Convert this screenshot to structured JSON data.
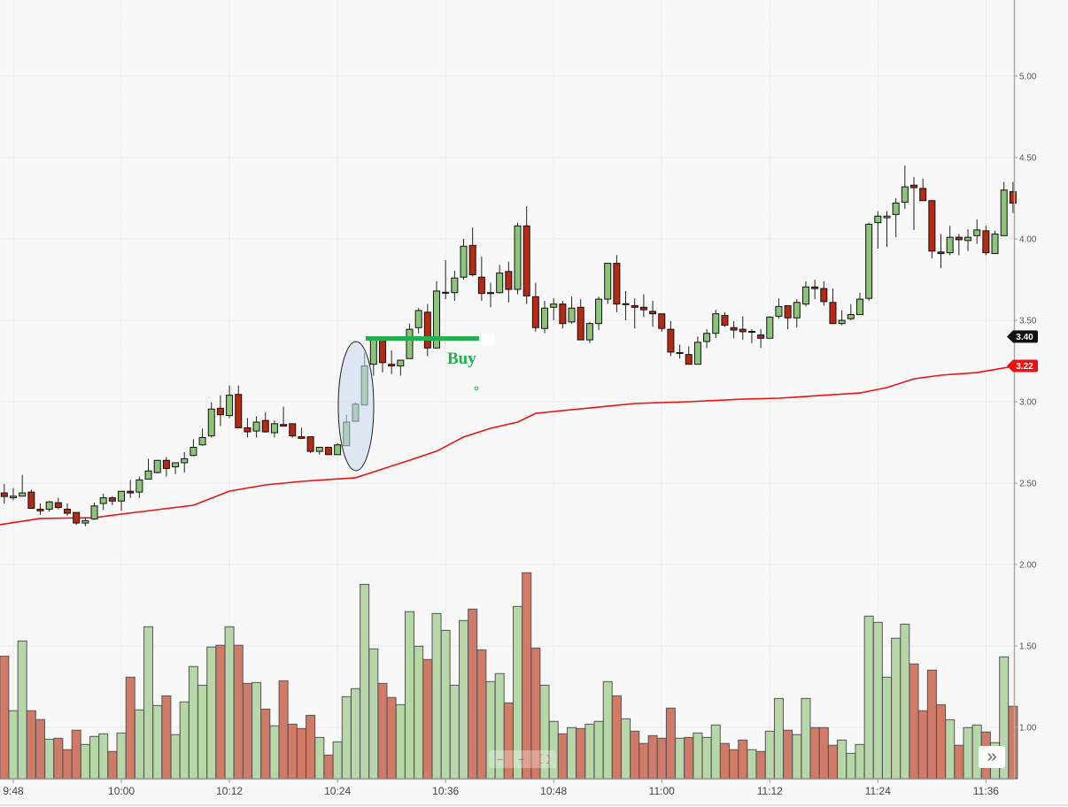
{
  "chart_data": {
    "type": "candlestick",
    "title": "",
    "x_ticks": [
      "9:48",
      "10:00",
      "10:12",
      "10:24",
      "10:36",
      "10:48",
      "11:00",
      "11:12",
      "11:24",
      "11:36"
    ],
    "y_ticks": [
      "5.00",
      "4.50",
      "4.00",
      "3.50",
      "3.00",
      "2.50",
      "2.00",
      "1.50",
      "1.00"
    ],
    "ylim": [
      0.7,
      5.47
    ],
    "grid": true,
    "candle_fields": [
      "time",
      "open",
      "high",
      "low",
      "close"
    ],
    "candles": [
      [
        "9:47",
        2.44,
        2.495,
        2.375,
        2.418
      ],
      [
        "9:48",
        2.41,
        2.47,
        2.395,
        2.42
      ],
      [
        "9:49",
        2.42,
        2.55,
        2.42,
        2.44
      ],
      [
        "9:50",
        2.445,
        2.46,
        2.345,
        2.345
      ],
      [
        "9:51",
        2.34,
        2.375,
        2.305,
        2.33
      ],
      [
        "9:52",
        2.34,
        2.39,
        2.325,
        2.385
      ],
      [
        "9:53",
        2.38,
        2.41,
        2.34,
        2.35
      ],
      [
        "9:54",
        2.34,
        2.375,
        2.3,
        2.315
      ],
      [
        "9:55",
        2.32,
        2.32,
        2.245,
        2.255
      ],
      [
        "9:56",
        2.255,
        2.29,
        2.235,
        2.27
      ],
      [
        "9:57",
        2.28,
        2.38,
        2.275,
        2.36
      ],
      [
        "9:58",
        2.375,
        2.435,
        2.335,
        2.41
      ],
      [
        "9:59",
        2.41,
        2.42,
        2.365,
        2.39
      ],
      [
        "10:00",
        2.39,
        2.45,
        2.33,
        2.45
      ],
      [
        "10:01",
        2.45,
        2.52,
        2.41,
        2.44
      ],
      [
        "10:02",
        2.445,
        2.54,
        2.41,
        2.52
      ],
      [
        "10:03",
        2.525,
        2.65,
        2.525,
        2.575
      ],
      [
        "10:04",
        2.565,
        2.64,
        2.56,
        2.64
      ],
      [
        "10:05",
        2.64,
        2.66,
        2.54,
        2.59
      ],
      [
        "10:06",
        2.6,
        2.625,
        2.555,
        2.625
      ],
      [
        "10:07",
        2.625,
        2.69,
        2.565,
        2.65
      ],
      [
        "10:08",
        2.67,
        2.77,
        2.665,
        2.72
      ],
      [
        "10:09",
        2.735,
        2.835,
        2.73,
        2.78
      ],
      [
        "10:10",
        2.79,
        2.995,
        2.78,
        2.955
      ],
      [
        "10:11",
        2.96,
        3.04,
        2.85,
        2.92
      ],
      [
        "10:12",
        2.915,
        3.1,
        2.9,
        3.04
      ],
      [
        "10:13",
        3.045,
        3.1,
        2.84,
        2.84
      ],
      [
        "10:14",
        2.84,
        2.9,
        2.78,
        2.815
      ],
      [
        "10:15",
        2.82,
        2.91,
        2.78,
        2.875
      ],
      [
        "10:16",
        2.885,
        2.935,
        2.81,
        2.815
      ],
      [
        "10:17",
        2.81,
        2.885,
        2.78,
        2.865
      ],
      [
        "10:18",
        2.86,
        2.97,
        2.85,
        2.85
      ],
      [
        "10:19",
        2.865,
        2.865,
        2.78,
        2.79
      ],
      [
        "10:20",
        2.785,
        2.84,
        2.77,
        2.775
      ],
      [
        "10:21",
        2.785,
        2.785,
        2.685,
        2.695
      ],
      [
        "10:22",
        2.695,
        2.72,
        2.675,
        2.72
      ],
      [
        "10:23",
        2.72,
        2.72,
        2.675,
        2.675
      ],
      [
        "10:24",
        2.675,
        2.745,
        2.675,
        2.735
      ],
      [
        "10:25",
        2.73,
        2.92,
        2.73,
        2.875
      ],
      [
        "10:26",
        2.88,
        2.995,
        2.88,
        2.985
      ],
      [
        "10:27",
        2.98,
        3.3,
        2.98,
        3.22
      ],
      [
        "10:28",
        3.23,
        3.385,
        3.16,
        3.385
      ],
      [
        "10:29",
        3.385,
        3.39,
        3.18,
        3.24
      ],
      [
        "10:30",
        3.23,
        3.315,
        3.17,
        3.22
      ],
      [
        "10:31",
        3.22,
        3.255,
        3.16,
        3.255
      ],
      [
        "10:32",
        3.265,
        3.48,
        3.265,
        3.445
      ],
      [
        "10:33",
        3.455,
        3.575,
        3.42,
        3.56
      ],
      [
        "10:34",
        3.55,
        3.6,
        3.28,
        3.33
      ],
      [
        "10:35",
        3.33,
        3.74,
        3.33,
        3.68
      ],
      [
        "10:36",
        3.67,
        3.87,
        3.63,
        3.672
      ],
      [
        "10:37",
        3.67,
        3.805,
        3.62,
        3.76
      ],
      [
        "10:38",
        3.765,
        4.0,
        3.75,
        3.955
      ],
      [
        "10:39",
        3.96,
        4.07,
        3.77,
        3.78
      ],
      [
        "10:40",
        3.765,
        3.89,
        3.62,
        3.665
      ],
      [
        "10:41",
        3.665,
        3.73,
        3.58,
        3.67
      ],
      [
        "10:42",
        3.67,
        3.84,
        3.665,
        3.79
      ],
      [
        "10:43",
        3.8,
        3.86,
        3.61,
        3.69
      ],
      [
        "10:44",
        3.69,
        4.1,
        3.66,
        4.08
      ],
      [
        "10:45",
        4.08,
        4.2,
        3.6,
        3.65
      ],
      [
        "10:46",
        3.645,
        3.73,
        3.43,
        3.455
      ],
      [
        "10:47",
        3.45,
        3.62,
        3.42,
        3.575
      ],
      [
        "10:48",
        3.58,
        3.635,
        3.5,
        3.6
      ],
      [
        "10:49",
        3.6,
        3.62,
        3.45,
        3.48
      ],
      [
        "10:50",
        3.49,
        3.645,
        3.48,
        3.575
      ],
      [
        "10:51",
        3.58,
        3.63,
        3.38,
        3.38
      ],
      [
        "10:52",
        3.38,
        3.49,
        3.36,
        3.48
      ],
      [
        "10:53",
        3.48,
        3.645,
        3.44,
        3.63
      ],
      [
        "10:54",
        3.63,
        3.85,
        3.6,
        3.85
      ],
      [
        "10:55",
        3.85,
        3.9,
        3.55,
        3.6
      ],
      [
        "10:56",
        3.6,
        3.68,
        3.5,
        3.602
      ],
      [
        "10:57",
        3.59,
        3.635,
        3.45,
        3.58
      ],
      [
        "10:58",
        3.58,
        3.66,
        3.52,
        3.565
      ],
      [
        "10:59",
        3.555,
        3.62,
        3.46,
        3.54
      ],
      [
        "11:00",
        3.54,
        3.54,
        3.43,
        3.45
      ],
      [
        "11:01",
        3.445,
        3.495,
        3.28,
        3.305
      ],
      [
        "11:02",
        3.3,
        3.35,
        3.265,
        3.302
      ],
      [
        "11:03",
        3.29,
        3.34,
        3.23,
        3.23
      ],
      [
        "11:04",
        3.23,
        3.4,
        3.23,
        3.365
      ],
      [
        "11:05",
        3.37,
        3.445,
        3.33,
        3.42
      ],
      [
        "11:06",
        3.42,
        3.565,
        3.39,
        3.54
      ],
      [
        "11:07",
        3.53,
        3.55,
        3.46,
        3.47
      ],
      [
        "11:08",
        3.455,
        3.495,
        3.39,
        3.44
      ],
      [
        "11:09",
        3.445,
        3.525,
        3.38,
        3.43
      ],
      [
        "11:10",
        3.43,
        3.445,
        3.36,
        3.432
      ],
      [
        "11:11",
        3.41,
        3.445,
        3.33,
        3.39
      ],
      [
        "11:12",
        3.39,
        3.525,
        3.39,
        3.52
      ],
      [
        "11:13",
        3.525,
        3.635,
        3.51,
        3.585
      ],
      [
        "11:14",
        3.59,
        3.59,
        3.445,
        3.515
      ],
      [
        "11:15",
        3.515,
        3.63,
        3.455,
        3.61
      ],
      [
        "11:16",
        3.6,
        3.74,
        3.585,
        3.705
      ],
      [
        "11:17",
        3.705,
        3.75,
        3.63,
        3.695
      ],
      [
        "11:18",
        3.695,
        3.74,
        3.59,
        3.615
      ],
      [
        "11:19",
        3.61,
        3.695,
        3.48,
        3.48
      ],
      [
        "11:20",
        3.48,
        3.56,
        3.47,
        3.5
      ],
      [
        "11:21",
        3.51,
        3.6,
        3.5,
        3.535
      ],
      [
        "11:22",
        3.535,
        3.67,
        3.535,
        3.63
      ],
      [
        "11:23",
        3.635,
        4.1,
        3.62,
        4.09
      ],
      [
        "11:24",
        4.1,
        4.17,
        3.94,
        4.14
      ],
      [
        "11:25",
        4.13,
        4.17,
        3.95,
        4.14
      ],
      [
        "11:26",
        4.15,
        4.25,
        4.01,
        4.22
      ],
      [
        "11:27",
        4.225,
        4.45,
        4.185,
        4.32
      ],
      [
        "11:28",
        4.33,
        4.38,
        4.055,
        4.315
      ],
      [
        "11:29",
        4.31,
        4.37,
        4.235,
        4.235
      ],
      [
        "11:30",
        4.235,
        4.24,
        3.88,
        3.925
      ],
      [
        "11:31",
        3.92,
        4.03,
        3.82,
        3.91
      ],
      [
        "11:32",
        3.915,
        4.08,
        3.9,
        4.01
      ],
      [
        "11:33",
        4.01,
        4.03,
        3.9,
        3.995
      ],
      [
        "11:34",
        3.99,
        4.06,
        3.925,
        4.01
      ],
      [
        "11:35",
        4.02,
        4.12,
        3.97,
        4.055
      ],
      [
        "11:36",
        4.05,
        4.08,
        3.9,
        3.915
      ],
      [
        "11:37",
        3.91,
        4.05,
        3.91,
        4.03
      ],
      [
        "11:38",
        4.02,
        4.35,
        4.02,
        4.3
      ],
      [
        "11:39",
        4.29,
        4.35,
        4.16,
        4.22
      ]
    ],
    "volume": [
      1.447,
      1.114,
      1.54,
      1.114,
      1.06,
      0.94,
      0.946,
      0.876,
      0.995,
      0.908,
      0.957,
      0.973,
      0.865,
      0.978,
      1.319,
      1.119,
      1.627,
      1.146,
      1.205,
      0.968,
      1.168,
      1.384,
      1.27,
      1.503,
      1.514,
      1.627,
      1.514,
      1.281,
      1.286,
      1.124,
      1.022,
      1.297,
      1.032,
      1.005,
      1.086,
      0.951,
      0.843,
      0.924,
      1.2,
      1.249,
      1.886,
      1.492,
      1.281,
      1.195,
      1.151,
      1.719,
      1.508,
      1.427,
      1.708,
      1.605,
      1.27,
      1.665,
      1.735,
      1.486,
      1.292,
      1.341,
      1.162,
      1.751,
      1.957,
      1.497,
      1.27,
      1.049,
      0.973,
      1.011,
      1.005,
      1.032,
      1.049,
      1.292,
      1.205,
      1.065,
      0.989,
      0.914,
      0.962,
      0.946,
      1.13,
      0.946,
      0.951,
      0.978,
      0.951,
      1.027,
      0.914,
      0.876,
      0.935,
      0.876,
      0.865,
      0.989,
      1.189,
      0.995,
      0.968,
      1.189,
      1.011,
      1.011,
      0.903,
      0.935,
      0.854,
      0.908,
      1.692,
      1.654,
      1.319,
      1.557,
      1.643,
      1.4,
      1.114,
      1.362,
      1.151,
      1.059,
      0.903,
      1.011,
      1.027,
      0.984,
      0.919,
      1.443,
      1.141
    ],
    "moving_average": [
      [
        "9:47",
        2.245
      ],
      [
        "9:51",
        2.283
      ],
      [
        "9:57",
        2.288
      ],
      [
        "10:00",
        2.31
      ],
      [
        "10:04",
        2.337
      ],
      [
        "10:08",
        2.364
      ],
      [
        "10:12",
        2.451
      ],
      [
        "10:16",
        2.489
      ],
      [
        "10:20",
        2.511
      ],
      [
        "10:26",
        2.533
      ],
      [
        "10:29",
        2.587
      ],
      [
        "10:32",
        2.641
      ],
      [
        "10:35",
        2.696
      ],
      [
        "10:38",
        2.783
      ],
      [
        "10:41",
        2.837
      ],
      [
        "10:44",
        2.875
      ],
      [
        "10:46",
        2.929
      ],
      [
        "10:50",
        2.951
      ],
      [
        "10:53",
        2.967
      ],
      [
        "10:57",
        2.989
      ],
      [
        "11:03",
        3.0
      ],
      [
        "11:09",
        3.016
      ],
      [
        "11:13",
        3.022
      ],
      [
        "11:19",
        3.043
      ],
      [
        "11:22",
        3.054
      ],
      [
        "11:25",
        3.087
      ],
      [
        "11:28",
        3.141
      ],
      [
        "11:31",
        3.163
      ],
      [
        "11:35",
        3.179
      ],
      [
        "11:39",
        3.217
      ]
    ],
    "annotations": {
      "buy_label": "Buy",
      "buy_level": 3.4,
      "highlight": "ellipse around 10:25–10:27 candles"
    },
    "price_tags": [
      {
        "label": "3.40",
        "color": "#111111"
      },
      {
        "label": "3.22",
        "color": "#ee1111"
      }
    ],
    "colors": {
      "up": "#8cc47a",
      "down": "#b52a10",
      "volume_up": "#b7d7a8",
      "volume_down": "#d27a68",
      "ma": "#ee1111",
      "buy": "#22b14c"
    }
  },
  "controls": {
    "zoom_out_icon": "minus-icon",
    "zoom_in_icon": "plus-icon",
    "reset_icon": "fullscreen-icon",
    "scroll_icon": "double-chevron-right-icon"
  }
}
